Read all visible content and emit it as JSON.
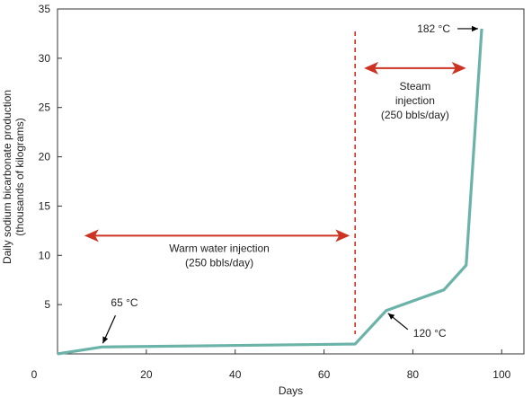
{
  "chart_data": {
    "type": "line",
    "title": "",
    "xlabel": "Days",
    "ylabel": [
      "Daily sodium bicarbonate production",
      "(thousands of kilograms)"
    ],
    "xlim": [
      0,
      105
    ],
    "ylim": [
      0,
      35
    ],
    "x_ticks": [
      0,
      20,
      40,
      60,
      80,
      100
    ],
    "y_ticks": [
      5,
      10,
      15,
      20,
      25,
      30,
      35
    ],
    "grid": false,
    "series": [
      {
        "color": "#6bb3a9",
        "x": [
          0,
          10,
          67,
          74,
          87,
          92,
          95.5
        ],
        "y": [
          0,
          0.7,
          1.0,
          4.4,
          6.5,
          9.0,
          33.0
        ]
      }
    ],
    "divider_x": 67,
    "annotations": {
      "warm": {
        "lines": [
          "Warm water injection",
          "(250 bbls/day)"
        ],
        "x_range": [
          3,
          65
        ],
        "y": 12,
        "color": "#cc3322"
      },
      "steam": {
        "lines": [
          "Steam",
          "injection",
          "(250 bbls/day)"
        ],
        "x_range": [
          69,
          92
        ],
        "y": 29,
        "color": "#cc3322"
      },
      "t65": {
        "text": "65 °C",
        "at": [
          10,
          0.8
        ]
      },
      "t120": {
        "text": "120 °C",
        "at": [
          74,
          4.3
        ]
      },
      "t182": {
        "text": "182 °C",
        "at": [
          95.5,
          33
        ]
      }
    }
  }
}
